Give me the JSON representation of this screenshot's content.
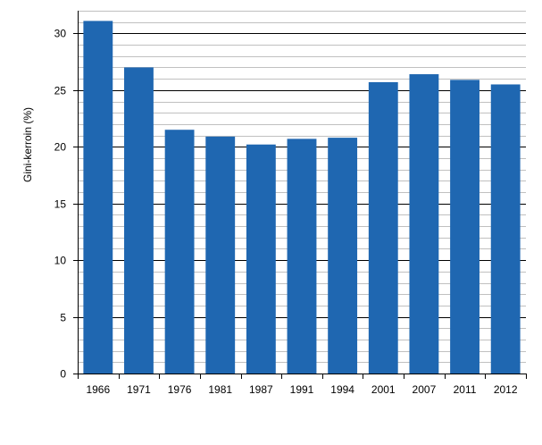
{
  "chart_data": {
    "type": "bar",
    "title": "",
    "xlabel": "",
    "ylabel": "Gini-kerroin (%)",
    "categories": [
      "1966",
      "1971",
      "1976",
      "1981",
      "1987",
      "1991",
      "1994",
      "2001",
      "2007",
      "2011",
      "2012"
    ],
    "values": [
      31.1,
      27.0,
      21.5,
      20.9,
      20.2,
      20.7,
      20.8,
      25.7,
      26.4,
      25.9,
      25.5
    ],
    "ylim": [
      0,
      32
    ],
    "yticks": [
      "0",
      "5",
      "10",
      "15",
      "20",
      "25",
      "30"
    ],
    "grid": true,
    "bar_color": "#1F67B1",
    "grid_color": "#C0C0C0",
    "major_grid_color": "#000000"
  }
}
